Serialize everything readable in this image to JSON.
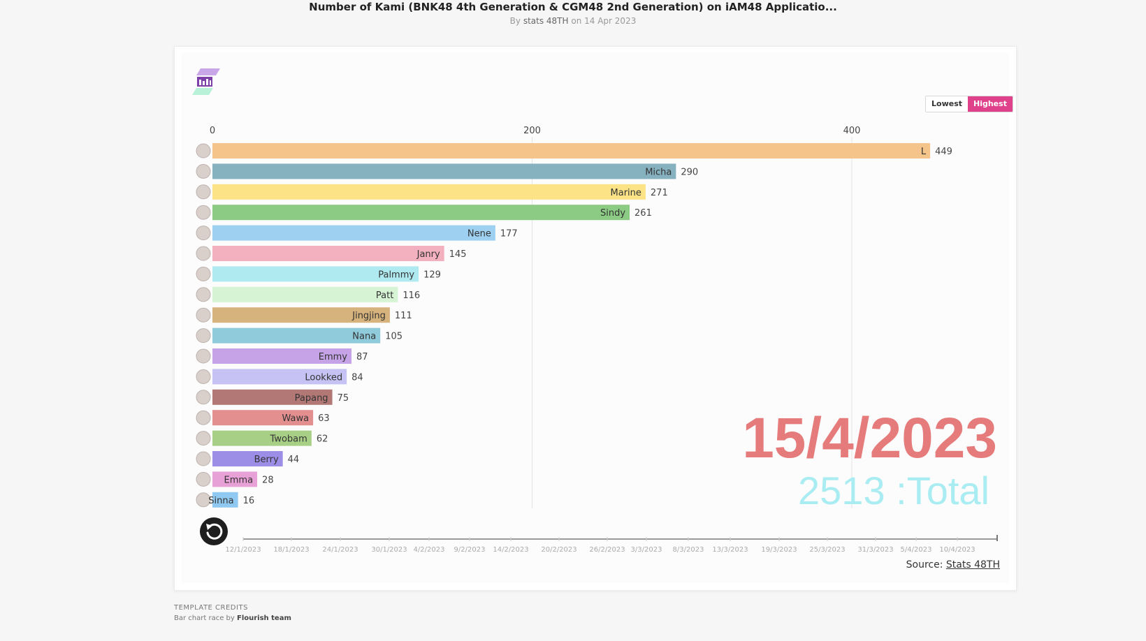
{
  "header": {
    "title": "Number of Kami (BNK48 4th Generation & CGM48 2nd Generation) on iAM48 Applicatio...",
    "subtitle_prefix": "By",
    "subtitle_author": "stats 48TH",
    "subtitle_date": "on 14 Apr 2023"
  },
  "controls": {
    "lowest_label": "Lowest",
    "highest_label": "Highest",
    "replay_icon": "replay-icon"
  },
  "colors": {
    "accent": "#e0418b",
    "date_label": "#e57b7b",
    "total_label": "#a9ecf2"
  },
  "chart_data": {
    "type": "bar",
    "orientation": "horizontal",
    "sort": "descending",
    "xlim": [
      0,
      500
    ],
    "x_ticks": [
      "0",
      "200",
      "400"
    ],
    "x_tick_values": [
      0,
      200,
      400
    ],
    "grid": true,
    "current_date": "15/4/2023",
    "total_label": "2513 :Total",
    "bars": [
      {
        "name": "L",
        "value": 449,
        "color": "#f5c48a"
      },
      {
        "name": "Micha",
        "value": 290,
        "color": "#86b2bf"
      },
      {
        "name": "Marine",
        "value": 271,
        "color": "#fbe386"
      },
      {
        "name": "Sindy",
        "value": 261,
        "color": "#8ccb84"
      },
      {
        "name": "Nene",
        "value": 177,
        "color": "#9dd0f1"
      },
      {
        "name": "Janry",
        "value": 145,
        "color": "#f3b0bf"
      },
      {
        "name": "Palmmy",
        "value": 129,
        "color": "#aeeaf0"
      },
      {
        "name": "Patt",
        "value": 116,
        "color": "#d6f3d4"
      },
      {
        "name": "Jingjing",
        "value": 111,
        "color": "#d6b27c"
      },
      {
        "name": "Nana",
        "value": 105,
        "color": "#8fcbda"
      },
      {
        "name": "Emmy",
        "value": 87,
        "color": "#c5a3e6"
      },
      {
        "name": "Lookked",
        "value": 84,
        "color": "#c6c2f4"
      },
      {
        "name": "Papang",
        "value": 75,
        "color": "#b27876"
      },
      {
        "name": "Wawa",
        "value": 63,
        "color": "#e48f8f"
      },
      {
        "name": "Twobam",
        "value": 62,
        "color": "#a8cf86"
      },
      {
        "name": "Berry",
        "value": 44,
        "color": "#9c8de6"
      },
      {
        "name": "Emma",
        "value": 28,
        "color": "#e8a1d6"
      },
      {
        "name": "Sinna",
        "value": 16,
        "color": "#8fc8f0"
      }
    ],
    "timeline_labels": [
      "12/1/2023",
      "18/1/2023",
      "24/1/2023",
      "30/1/2023",
      "4/2/2023",
      "9/2/2023",
      "14/2/2023",
      "20/2/2023",
      "26/2/2023",
      "3/3/2023",
      "8/3/2023",
      "13/3/2023",
      "19/3/2023",
      "25/3/2023",
      "31/3/2023",
      "5/4/2023",
      "10/4/2023"
    ],
    "timeline_progress": 1.0
  },
  "footer": {
    "source_prefix": "Source:",
    "source_link": "Stats 48TH",
    "credits_heading": "TEMPLATE CREDITS",
    "credits_prefix": "Bar chart race by",
    "credits_team": "Flourish team"
  }
}
